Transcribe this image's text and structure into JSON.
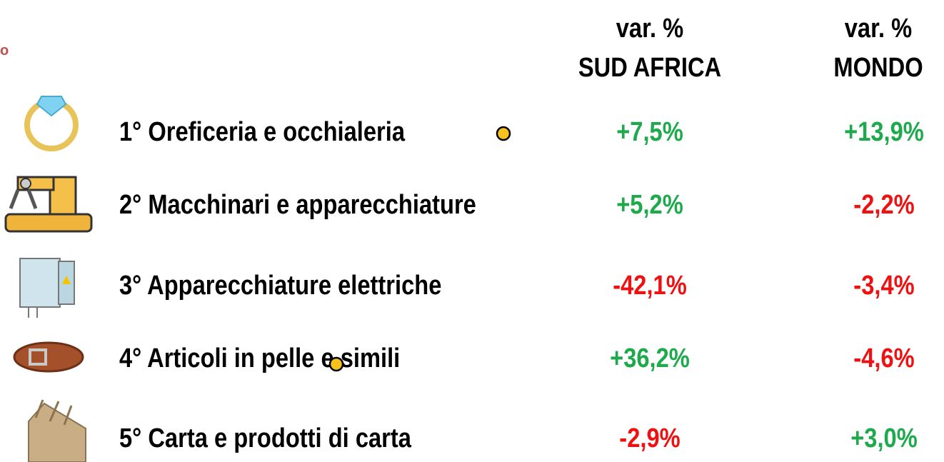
{
  "corner_fragment": "o",
  "header": {
    "sud_africa": [
      "var. %",
      "SUD AFRICA"
    ],
    "mondo": [
      "var. %",
      "MONDO"
    ]
  },
  "rows": [
    {
      "label": "1° Oreficeria e occhialeria",
      "sud_africa": "+7,5%",
      "mondo": "+13,9%"
    },
    {
      "label": "2° Macchinari e apparecchiature",
      "sud_africa": "+5,2%",
      "mondo": "-2,2%"
    },
    {
      "label": "3° Apparecchiature elettriche",
      "sud_africa": "-42,1%",
      "mondo": "-3,4%"
    },
    {
      "label": "4° Articoli in pelle e simili",
      "sud_africa": "+36,2%",
      "mondo": "-4,6%"
    },
    {
      "label": "5° Carta e prodotti di carta",
      "sud_africa": "-2,9%",
      "mondo": "+3,0%"
    }
  ]
}
